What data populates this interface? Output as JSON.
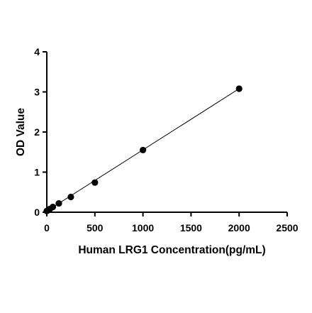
{
  "chart_data": {
    "type": "scatter",
    "title": "",
    "xlabel": "Human LRG1 Concentration(pg/mL)",
    "ylabel": "OD Value",
    "xlim": [
      0,
      2500
    ],
    "ylim": [
      0,
      4
    ],
    "x_ticks": [
      "0",
      "500",
      "1000",
      "1500",
      "2000",
      "2500"
    ],
    "y_ticks": [
      "0",
      "1",
      "2",
      "3",
      "4"
    ],
    "grid": false,
    "legend": "none",
    "series": [
      {
        "x": [
          0,
          15.6,
          31.25,
          62.5,
          125,
          250,
          500,
          1000,
          2000
        ],
        "y": [
          0.03,
          0.05,
          0.08,
          0.13,
          0.22,
          0.38,
          0.74,
          1.55,
          3.08
        ]
      }
    ],
    "fit_line": {
      "x": [
        0,
        2000
      ],
      "y": [
        0.03,
        3.08
      ]
    },
    "colors": {
      "points": "#000000",
      "line": "#000000",
      "axes": "#000000"
    }
  }
}
